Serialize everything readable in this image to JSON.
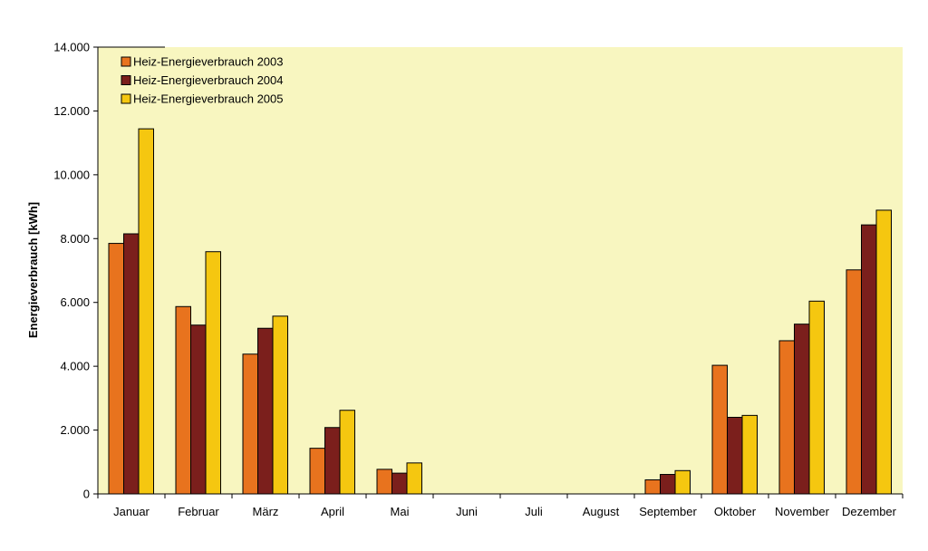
{
  "chart_data": {
    "type": "bar",
    "title": "",
    "xlabel": "",
    "ylabel": "Energieverbrauch [kWh]",
    "ylim": [
      0,
      14000
    ],
    "yticks": [
      0,
      2000,
      4000,
      6000,
      8000,
      10000,
      12000,
      14000
    ],
    "ytick_labels": [
      "0",
      "2.000",
      "4.000",
      "6.000",
      "8.000",
      "10.000",
      "12.000",
      "14.000"
    ],
    "grid": false,
    "legend_position": "top-left",
    "plot_background": "#F8F6C0",
    "categories": [
      "Januar",
      "Februar",
      "März",
      "April",
      "Mai",
      "Juni",
      "Juli",
      "August",
      "September",
      "Oktober",
      "November",
      "Dezember"
    ],
    "series": [
      {
        "name": "Heiz-Energieverbrauch 2003",
        "color": "#E8731E",
        "values": [
          7850,
          5870,
          4380,
          1430,
          770,
          0,
          0,
          0,
          440,
          4030,
          4800,
          7020
        ]
      },
      {
        "name": "Heiz-Energieverbrauch 2004",
        "color": "#7B1F1C",
        "values": [
          8150,
          5290,
          5190,
          2080,
          650,
          0,
          0,
          0,
          610,
          2400,
          5320,
          8430
        ]
      },
      {
        "name": "Heiz-Energieverbrauch 2005",
        "color": "#F5C710",
        "values": [
          11440,
          7590,
          5570,
          2620,
          970,
          0,
          0,
          0,
          730,
          2460,
          6040,
          8890
        ]
      }
    ]
  }
}
